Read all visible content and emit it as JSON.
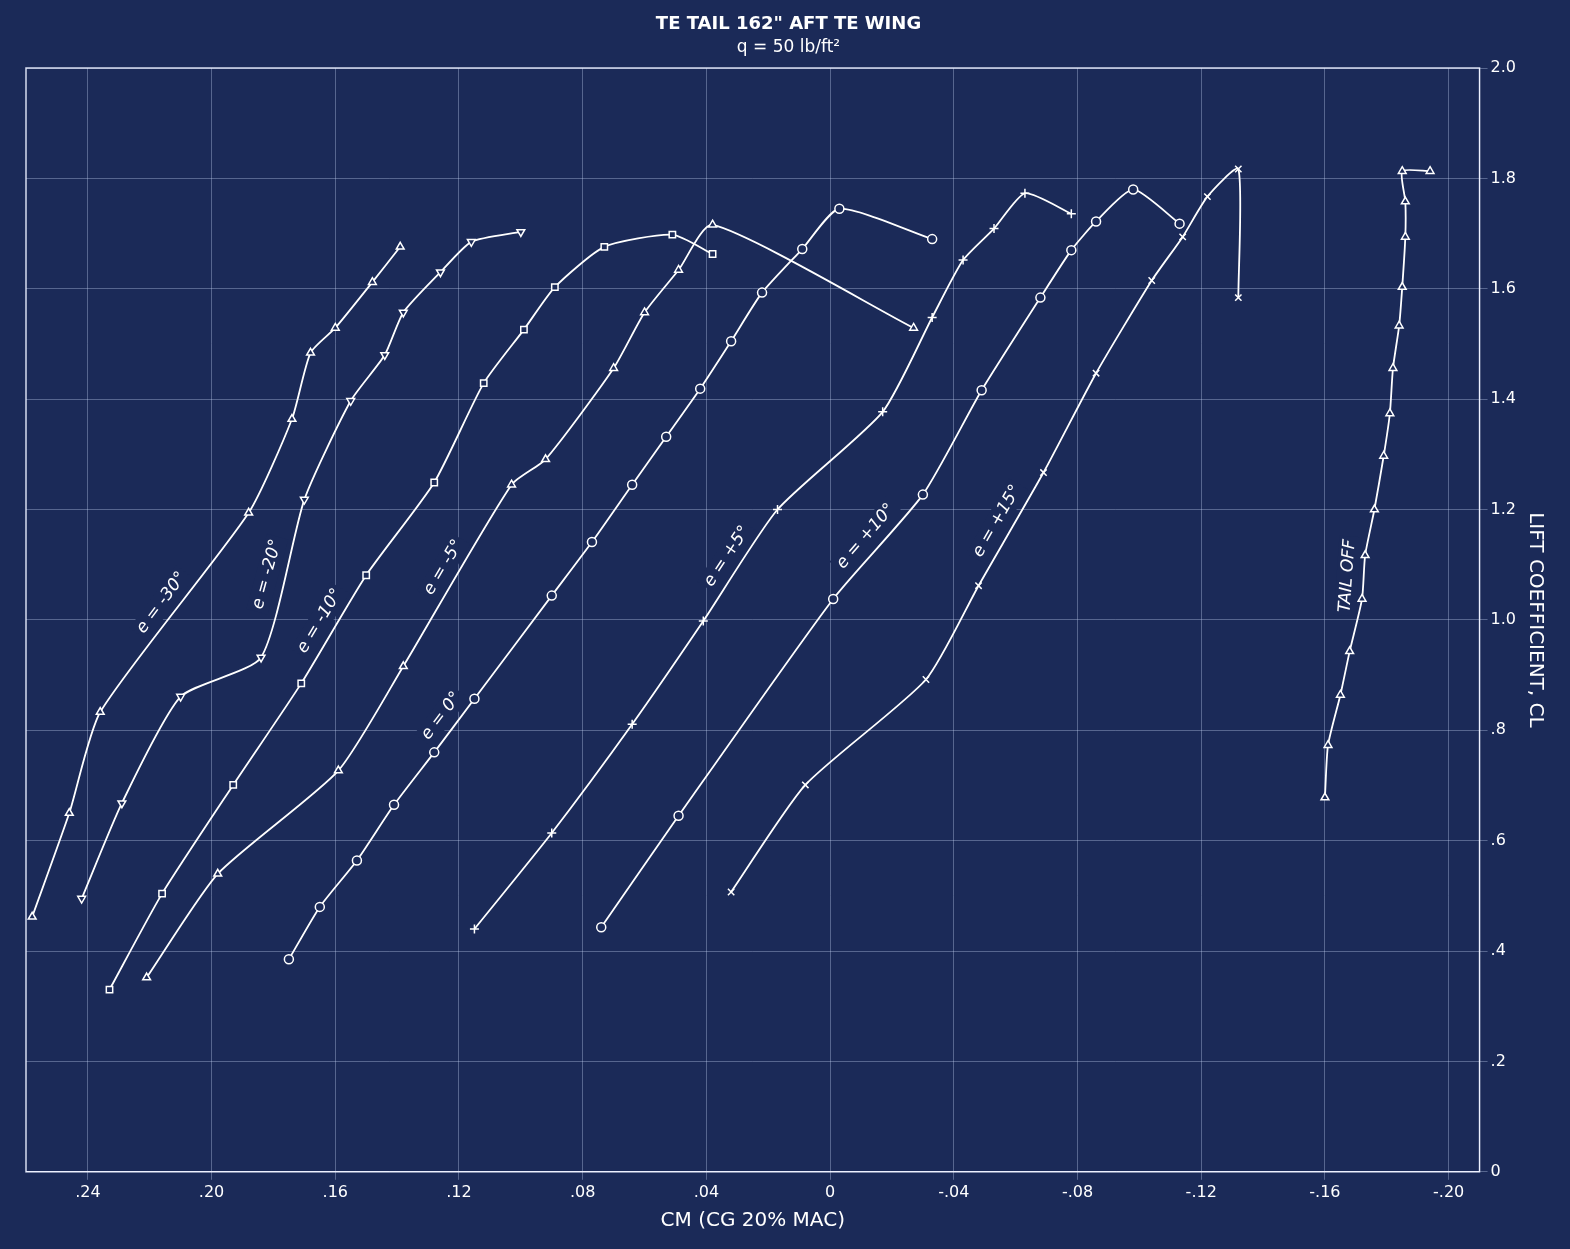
{
  "chart_data": {
    "type": "line",
    "title": "TE TAIL 162\" AFT TE WING",
    "subtitle": "q = 50 lb/ft²",
    "x_label": "CM (CG 20% MAC)",
    "y_label": "LIFT COEFFICIENT, CL",
    "xlim": [
      0.26,
      -0.21
    ],
    "xticks": [
      {
        "value": 0.24,
        "label": ".24"
      },
      {
        "value": 0.2,
        "label": ".20"
      },
      {
        "value": 0.16,
        "label": ".16"
      },
      {
        "value": 0.12,
        "label": ".12"
      },
      {
        "value": 0.08,
        "label": ".08"
      },
      {
        "value": 0.04,
        "label": ".04"
      },
      0,
      {
        "value": -0.04,
        "label": "-.04"
      },
      {
        "value": -0.08,
        "label": "-.08"
      },
      {
        "value": -0.12,
        "label": "-.12"
      },
      {
        "value": -0.16,
        "label": "-.16"
      },
      {
        "value": -0.2,
        "label": "-.20"
      }
    ],
    "ylim": [
      0,
      2.0
    ],
    "yticks": [
      0,
      {
        "value": 0.2,
        "label": ".2"
      },
      {
        "value": 0.4,
        "label": ".4"
      },
      {
        "value": 0.6,
        "label": ".6"
      },
      {
        "value": 0.8,
        "label": ".8"
      },
      {
        "value": 1.0,
        "label": "1.0"
      },
      1.2,
      1.4,
      1.6,
      1.8,
      {
        "value": 2.0,
        "label": "2.0"
      }
    ],
    "grid": true,
    "series": [
      {
        "name": "e = -30°",
        "color": "#ffffff",
        "marker": "triangle",
        "x": [
          0.258,
          0.246,
          0.236,
          0.188,
          0.174,
          0.168,
          0.16,
          0.148,
          0.139
        ],
        "values": [
          0.462,
          0.65,
          0.833,
          1.194,
          1.364,
          1.484,
          1.529,
          1.612,
          1.676
        ]
      },
      {
        "name": "e = -20°",
        "color": "#ffffff",
        "marker": "triangle_down",
        "x": [
          0.242,
          0.229,
          0.21,
          0.184,
          0.17,
          0.155,
          0.144,
          0.138,
          0.126,
          0.116,
          0.1
        ],
        "values": [
          0.495,
          0.668,
          0.861,
          0.932,
          1.218,
          1.397,
          1.48,
          1.557,
          1.63,
          1.685,
          1.703
        ]
      },
      {
        "name": "e = -10°",
        "color": "#ffffff",
        "marker": "square",
        "x": [
          0.233,
          0.216,
          0.193,
          0.171,
          0.15,
          0.128,
          0.112,
          0.099,
          0.089,
          0.073,
          0.051,
          0.038
        ],
        "values": [
          0.33,
          0.504,
          0.701,
          0.885,
          1.081,
          1.249,
          1.429,
          1.526,
          1.603,
          1.676,
          1.698,
          1.663
        ]
      },
      {
        "name": "e = -5°",
        "color": "#ffffff",
        "marker": "triangle",
        "x": [
          0.221,
          0.198,
          0.159,
          0.138,
          0.103,
          0.092,
          0.07,
          0.06,
          0.049,
          0.038,
          -0.027
        ],
        "values": [
          0.352,
          0.54,
          0.727,
          0.916,
          1.245,
          1.291,
          1.456,
          1.557,
          1.634,
          1.716,
          1.529
        ]
      },
      {
        "name": "e = 0°",
        "color": "#ffffff",
        "marker": "circle",
        "x": [
          0.175,
          0.165,
          0.153,
          0.141,
          0.128,
          0.115,
          0.09,
          0.077,
          0.064,
          0.053,
          0.042,
          0.032,
          0.022,
          0.009,
          -0.003,
          -0.033
        ],
        "values": [
          0.385,
          0.48,
          0.564,
          0.665,
          0.76,
          0.857,
          1.044,
          1.141,
          1.245,
          1.332,
          1.419,
          1.505,
          1.593,
          1.672,
          1.745,
          1.69
        ]
      },
      {
        "name": "e = +5°",
        "color": "#ffffff",
        "marker": "plus",
        "x": [
          0.115,
          0.09,
          0.064,
          0.041,
          0.017,
          -0.017,
          -0.033,
          -0.043,
          -0.053,
          -0.063,
          -0.078
        ],
        "values": [
          0.44,
          0.614,
          0.811,
          0.998,
          1.2,
          1.377,
          1.548,
          1.652,
          1.709,
          1.773,
          1.736
        ]
      },
      {
        "name": "e = +10°",
        "color": "#ffffff",
        "marker": "circle",
        "x": [
          0.074,
          0.049,
          -0.001,
          -0.03,
          -0.049,
          -0.068,
          -0.078,
          -0.086,
          -0.098,
          -0.113
        ],
        "values": [
          0.443,
          0.645,
          1.038,
          1.227,
          1.416,
          1.584,
          1.67,
          1.722,
          1.78,
          1.718
        ]
      },
      {
        "name": "e = +15°",
        "color": "#ffffff",
        "marker": "x",
        "x": [
          0.032,
          0.008,
          -0.031,
          -0.048,
          -0.069,
          -0.086,
          -0.104,
          -0.114,
          -0.122,
          -0.132,
          -0.132
        ],
        "values": [
          0.507,
          0.701,
          0.892,
          1.062,
          1.267,
          1.447,
          1.615,
          1.694,
          1.767,
          1.817,
          1.584
        ]
      },
      {
        "name": "TAIL OFF",
        "color": "#ffffff",
        "marker": "triangle",
        "x": [
          -0.16,
          -0.161,
          -0.165,
          -0.168,
          -0.172,
          -0.173,
          -0.176,
          -0.179,
          -0.181,
          -0.182,
          -0.184,
          -0.185,
          -0.186,
          -0.186,
          -0.185,
          -0.194
        ],
        "values": [
          0.678,
          0.773,
          0.864,
          0.943,
          1.038,
          1.117,
          1.2,
          1.297,
          1.374,
          1.456,
          1.533,
          1.603,
          1.694,
          1.758,
          1.813,
          1.813
        ]
      }
    ]
  }
}
